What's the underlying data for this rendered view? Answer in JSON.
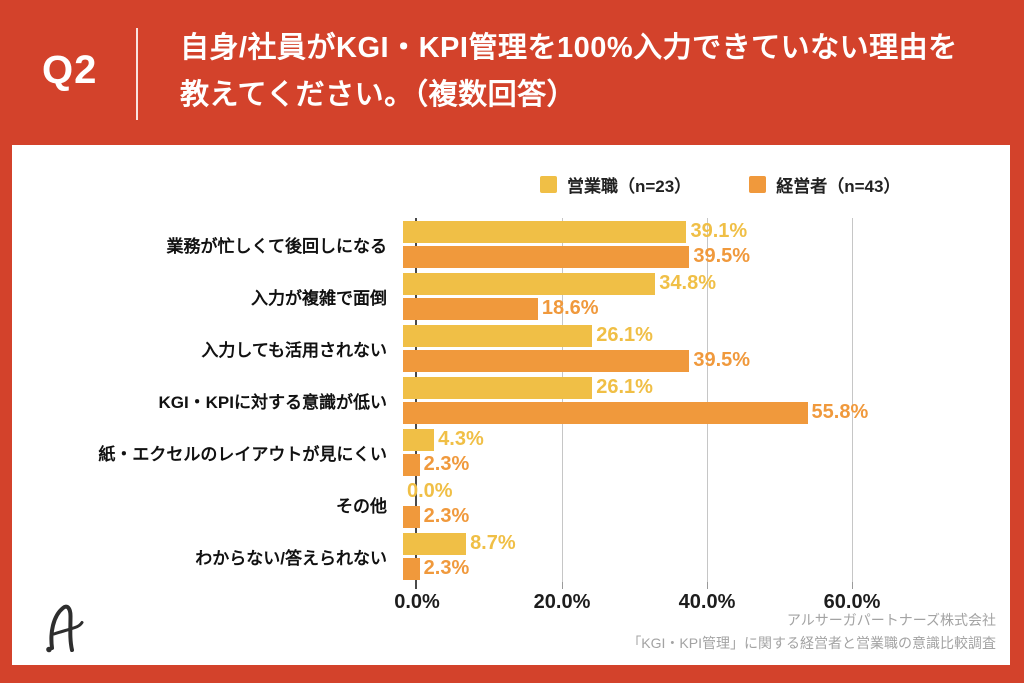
{
  "header": {
    "q_label": "Q2",
    "title_line1": "自身/社員がKGI・KPI管理を100%入力できていない理由を",
    "title_line2": "教えてください。（複数回答）"
  },
  "chart_data": {
    "type": "bar",
    "orientation": "horizontal",
    "categories": [
      "業務が忙しくて後回しになる",
      "入力が複雑で面倒",
      "入力しても活用されない",
      "KGI・KPIに対する意識が低い",
      "紙・エクセルのレイアウトが見にくい",
      "その他",
      "わからない/答えられない"
    ],
    "series": [
      {
        "name": "営業職（n=23）",
        "color": "#F0BF46",
        "values": [
          39.1,
          34.8,
          26.1,
          26.1,
          4.3,
          0.0,
          8.7
        ]
      },
      {
        "name": "経営者（n=43）",
        "color": "#F0993C",
        "values": [
          39.5,
          18.6,
          39.5,
          55.8,
          2.3,
          2.3,
          2.3
        ]
      }
    ],
    "value_suffix": "%",
    "xticks": [
      0,
      20,
      40,
      60
    ],
    "xtick_labels": [
      "0.0%",
      "20.0%",
      "40.0%",
      "60.0%"
    ],
    "xlim": [
      0,
      80
    ],
    "grid": true,
    "legend_position": "top-right",
    "title": ""
  },
  "footer": {
    "line1": "アルサーガパートナーズ株式会社",
    "line2": "「KGI・KPI管理」に関する経営者と営業職の意識比較調査"
  },
  "branding": {
    "logo_letter": "A"
  },
  "colors": {
    "background": "#D3422B",
    "card": "#ffffff",
    "series_sales": "#F0BF46",
    "series_executives": "#F0993C"
  }
}
